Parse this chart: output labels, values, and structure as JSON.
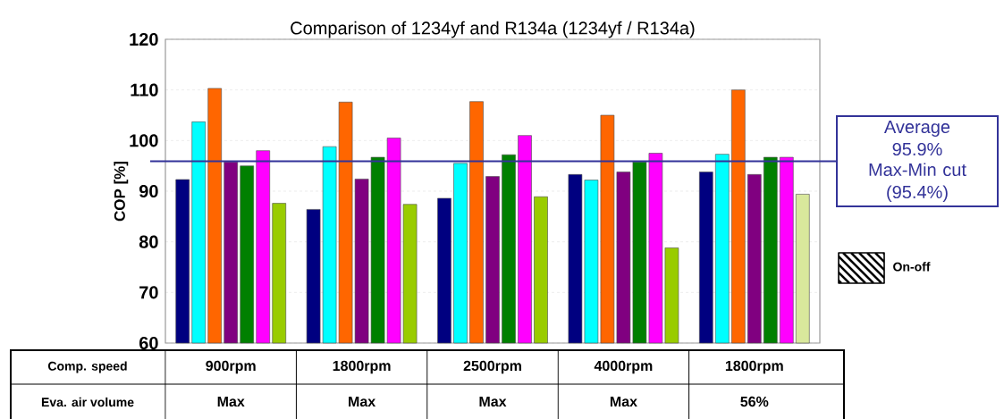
{
  "chart_data": {
    "type": "bar",
    "title": "Comparison of 1234yf and R134a (1234yf / R134a)",
    "ylabel": "COP [%]",
    "categories": [
      "900rpm",
      "1800rpm",
      "2500rpm",
      "4000rpm",
      "1800rpm"
    ],
    "series": [
      {
        "color": "#000080",
        "values": [
          92.3,
          86.4,
          88.6,
          93.3,
          93.8
        ]
      },
      {
        "color": "#00ffff",
        "values": [
          103.7,
          98.8,
          95.5,
          92.2,
          97.3
        ]
      },
      {
        "color": "#ff6600",
        "values": [
          110.3,
          107.6,
          107.7,
          105.0,
          110.0
        ]
      },
      {
        "color": "#800080",
        "values": [
          95.8,
          92.4,
          92.9,
          93.8,
          93.3
        ]
      },
      {
        "color": "#008000",
        "values": [
          95.0,
          96.7,
          97.2,
          95.8,
          96.7
        ]
      },
      {
        "color": "#ff00ff",
        "values": [
          98.0,
          100.5,
          101.0,
          97.5,
          96.7
        ]
      },
      {
        "color": "#99cc00",
        "colors": [
          null,
          null,
          null,
          null,
          "#d9e89c"
        ],
        "values": [
          87.6,
          87.4,
          88.9,
          78.8,
          89.4
        ]
      }
    ],
    "ylim": [
      60,
      120
    ],
    "yticks": [
      60,
      70,
      80,
      90,
      100,
      110,
      120
    ],
    "grid": "y",
    "ref_lines": [
      {
        "axis": "y",
        "value": 95.9,
        "label": "Average 95.9%",
        "color": "#333399"
      }
    ],
    "annotations": [
      "Comp. speed",
      "Eva. air volume",
      "Max",
      "Max",
      "Max",
      "Max",
      "56%",
      "Max-Min cut",
      "(95.4%)",
      "On-off"
    ]
  }
}
